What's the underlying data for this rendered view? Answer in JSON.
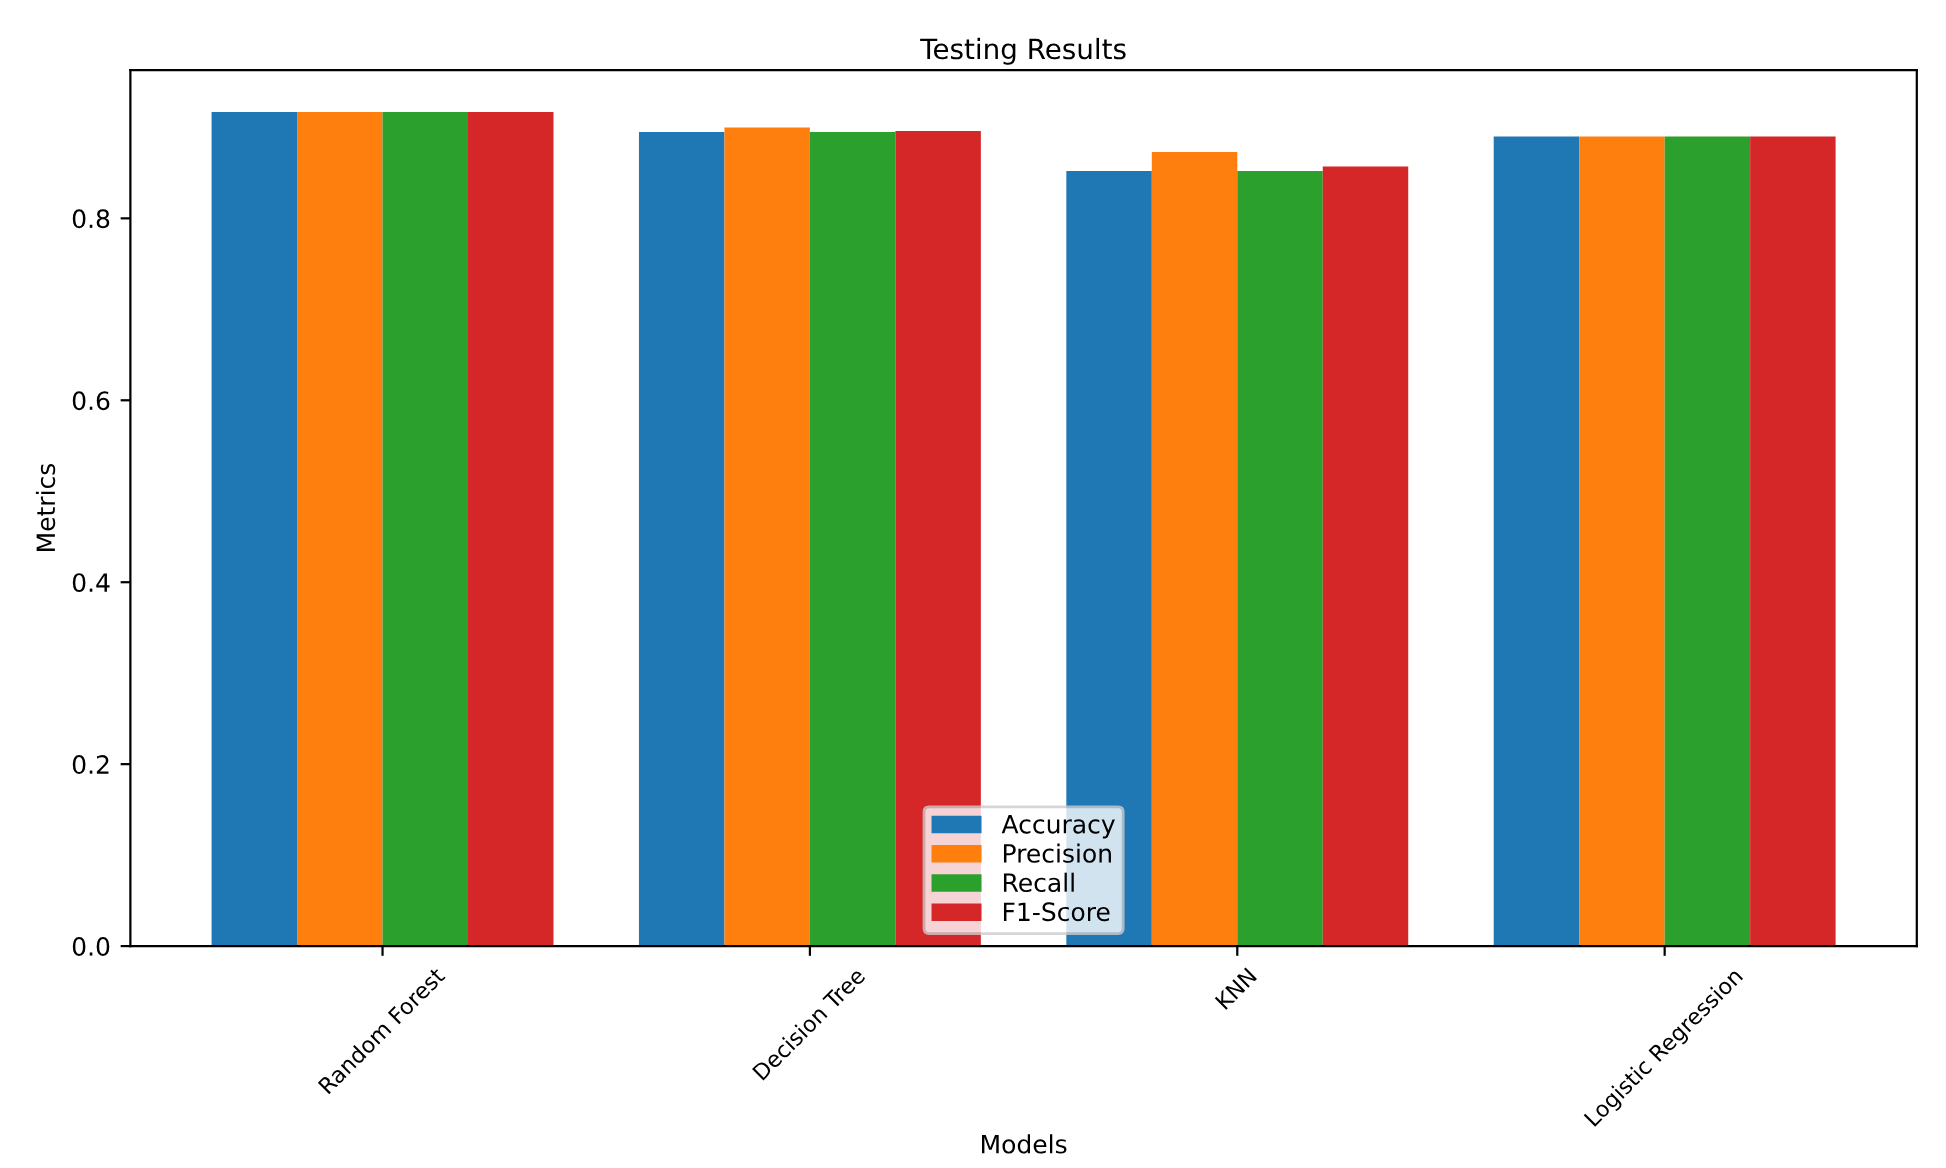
{
  "chart_data": {
    "type": "bar",
    "title": "Testing Results",
    "xlabel": "Models",
    "ylabel": "Metrics",
    "categories": [
      "Random Forest",
      "Decision Tree",
      "KNN",
      "Logistic Regression"
    ],
    "series": [
      {
        "name": "Accuracy",
        "color": "#1f77b4",
        "values": [
          0.917,
          0.895,
          0.852,
          0.89
        ]
      },
      {
        "name": "Precision",
        "color": "#ff7f0e",
        "values": [
          0.917,
          0.9,
          0.873,
          0.89
        ]
      },
      {
        "name": "Recall",
        "color": "#2ca02c",
        "values": [
          0.917,
          0.895,
          0.852,
          0.89
        ]
      },
      {
        "name": "F1-Score",
        "color": "#d62728",
        "values": [
          0.917,
          0.896,
          0.857,
          0.89
        ]
      }
    ],
    "ylim": [
      0,
      0.963
    ],
    "yticks": [
      {
        "value": 0,
        "label": "0.0"
      },
      {
        "value": 0.2,
        "label": "0.2"
      },
      {
        "value": 0.4,
        "label": "0.4"
      },
      {
        "value": 0.6,
        "label": "0.6"
      },
      {
        "value": 0.8,
        "label": "0.8"
      }
    ],
    "legend": "bottom",
    "grid": false
  }
}
